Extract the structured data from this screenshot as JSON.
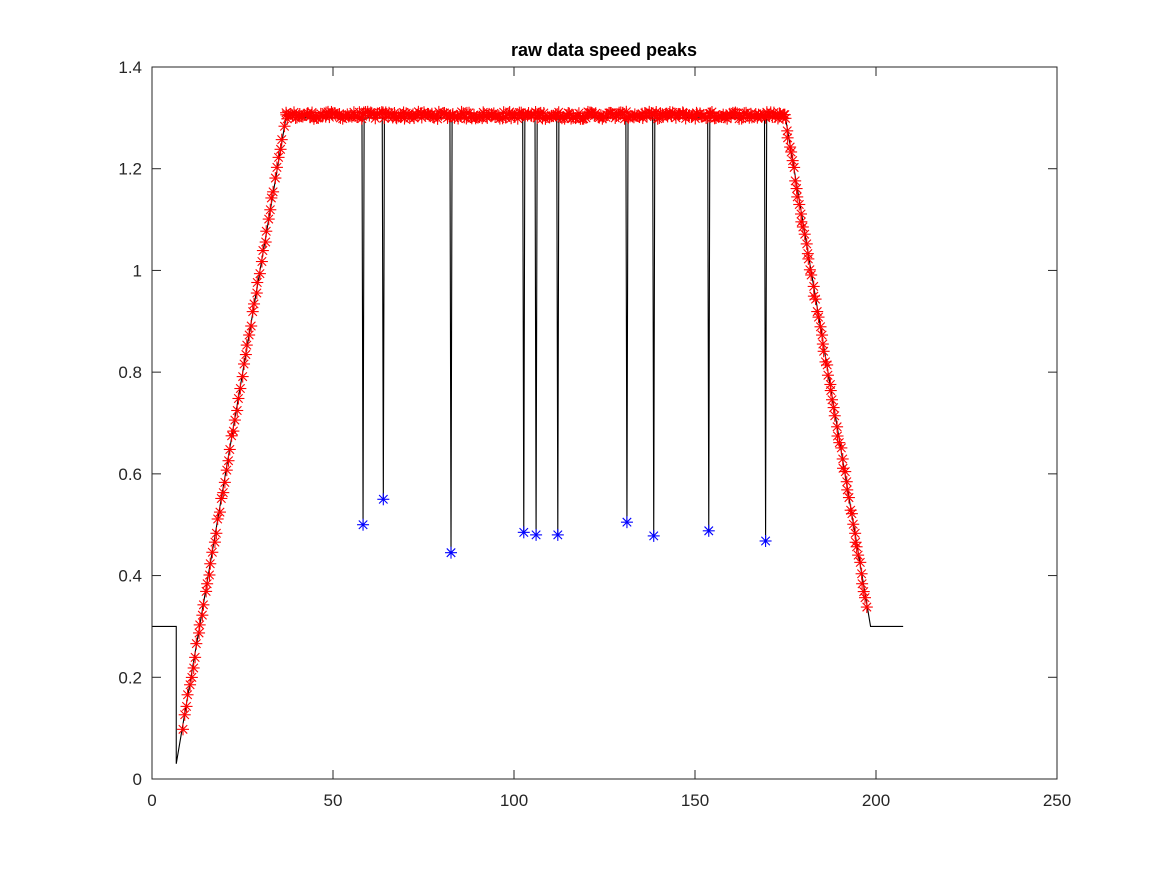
{
  "chart_data": {
    "type": "line",
    "title": "raw data speed peaks",
    "xlabel": "",
    "ylabel": "",
    "xlim": [
      0,
      250
    ],
    "ylim": [
      0,
      1.4
    ],
    "x_ticks": [
      0,
      50,
      100,
      150,
      200,
      250
    ],
    "y_ticks": [
      0,
      0.2,
      0.4,
      0.6,
      0.8,
      1,
      1.2,
      1.4
    ],
    "x_tick_labels": [
      "0",
      "50",
      "100",
      "150",
      "200",
      "250"
    ],
    "y_tick_labels": [
      "0",
      "0.2",
      "0.4",
      "0.6",
      "0.8",
      "1",
      "1.2",
      "1.4"
    ],
    "grid": false,
    "box": true,
    "series": [
      {
        "style": "line",
        "color": "#000000",
        "points": [
          [
            0,
            0.3
          ],
          [
            6.7,
            0.3
          ],
          [
            6.7,
            0.03
          ],
          [
            37,
            1.3
          ],
          [
            58,
            1.3
          ],
          [
            58.3,
            0.5
          ],
          [
            58.6,
            1.3
          ],
          [
            63.6,
            1.3
          ],
          [
            63.9,
            0.55
          ],
          [
            64.2,
            1.3
          ],
          [
            82.3,
            1.3
          ],
          [
            82.6,
            0.445
          ],
          [
            82.9,
            1.3
          ],
          [
            102.4,
            1.3
          ],
          [
            102.7,
            0.485
          ],
          [
            103,
            1.3
          ],
          [
            105.8,
            1.3
          ],
          [
            106.1,
            0.48
          ],
          [
            106.4,
            1.3
          ],
          [
            111.8,
            1.3
          ],
          [
            112.1,
            0.48
          ],
          [
            112.4,
            1.3
          ],
          [
            130.9,
            1.3
          ],
          [
            131.2,
            0.505
          ],
          [
            131.5,
            1.3
          ],
          [
            138.3,
            1.3
          ],
          [
            138.6,
            0.478
          ],
          [
            138.9,
            1.3
          ],
          [
            153.5,
            1.3
          ],
          [
            153.8,
            0.488
          ],
          [
            154.1,
            1.3
          ],
          [
            169.2,
            1.3
          ],
          [
            169.5,
            0.468
          ],
          [
            169.8,
            1.3
          ],
          [
            175,
            1.3
          ],
          [
            198.5,
            0.3
          ],
          [
            207.5,
            0.3
          ]
        ]
      },
      {
        "style": "markers",
        "marker": "asterisk",
        "color": "#ff0000",
        "segments": [
          {
            "x_start": 8.5,
            "x_end": 37,
            "y_start": 0.1,
            "y_end": 1.3,
            "count": 60,
            "jitter": 0.006
          },
          {
            "x_start": 37,
            "x_end": 175,
            "y_start": 1.305,
            "y_end": 1.305,
            "count": 320,
            "jitter": 0.007
          },
          {
            "x_start": 175,
            "x_end": 197.5,
            "y_start": 1.295,
            "y_end": 0.34,
            "count": 60,
            "jitter": 0.006
          }
        ]
      },
      {
        "style": "markers",
        "marker": "asterisk",
        "color": "#0000ff",
        "points": [
          [
            58.3,
            0.5
          ],
          [
            63.9,
            0.55
          ],
          [
            82.6,
            0.445
          ],
          [
            102.7,
            0.485
          ],
          [
            106.1,
            0.48
          ],
          [
            112.1,
            0.48
          ],
          [
            131.2,
            0.505
          ],
          [
            138.6,
            0.478
          ],
          [
            153.8,
            0.488
          ],
          [
            169.5,
            0.468
          ]
        ]
      }
    ]
  }
}
